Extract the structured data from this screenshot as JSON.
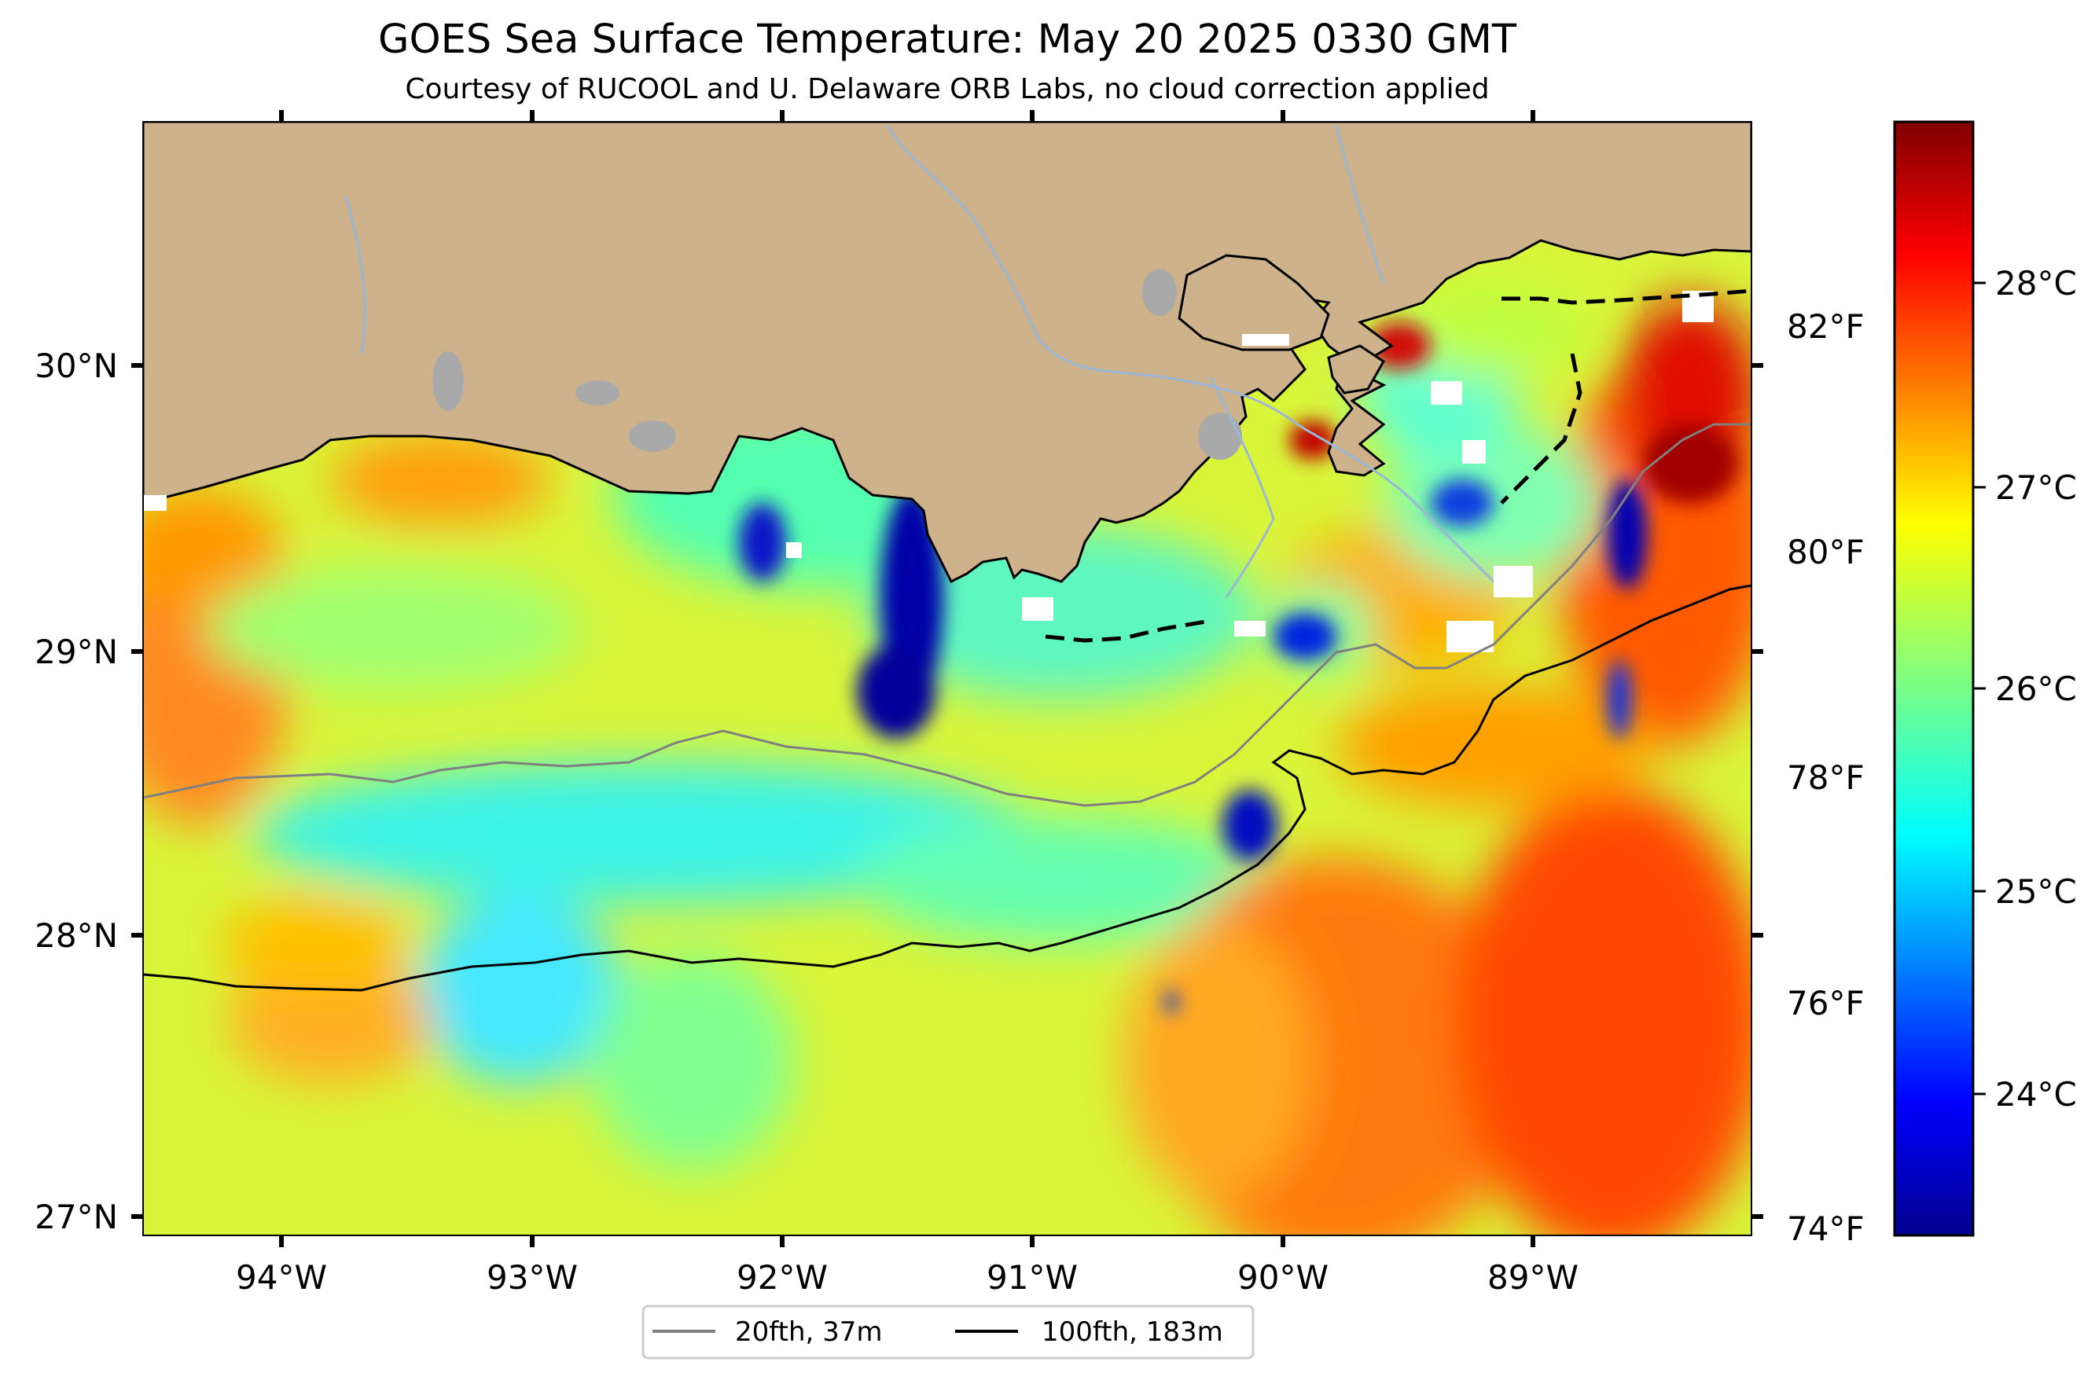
{
  "title": "GOES Sea Surface Temperature: May 20 2025 0330 GMT",
  "subtitle": "Courtesy of RUCOOL and U. Delaware ORB Labs, no cloud correction applied",
  "map": {
    "lon_ticks": [
      "94°W",
      "93°W",
      "92°W",
      "91°W",
      "90°W",
      "89°W"
    ],
    "lat_ticks": [
      "30°N",
      "29°N",
      "28°N",
      "27°N"
    ],
    "land_color": "#cdb28c",
    "lake_color": "#a9a9a9",
    "river_color": "#9ab8d6"
  },
  "colorbar": {
    "celsius_ticks": [
      "28°C",
      "27°C",
      "26°C",
      "25°C",
      "24°C"
    ],
    "fahrenheit_ticks": [
      "82°F",
      "80°F",
      "78°F",
      "76°F",
      "74°F"
    ],
    "colormap": "jet"
  },
  "legend": {
    "items": [
      {
        "label": "20fth, 37m",
        "color": "#808080"
      },
      {
        "label": "100fth, 183m",
        "color": "#000000"
      }
    ]
  }
}
